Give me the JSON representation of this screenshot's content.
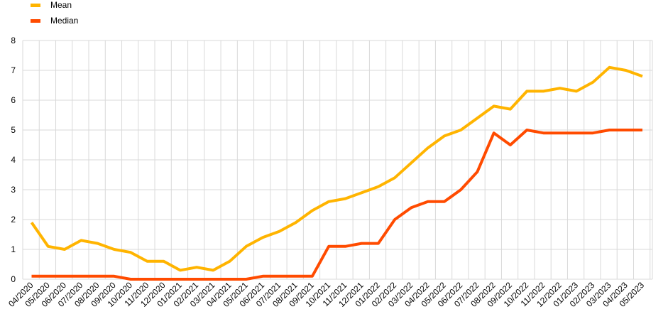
{
  "chart_data": {
    "type": "line",
    "title": "",
    "xlabel": "",
    "ylabel": "",
    "ylim": [
      0,
      8
    ],
    "yticks": [
      0,
      1,
      2,
      3,
      4,
      5,
      6,
      7,
      8
    ],
    "grid": true,
    "legend_position": "top-left",
    "categories": [
      "04/2020",
      "05/2020",
      "06/2020",
      "07/2020",
      "08/2020",
      "09/2020",
      "10/2020",
      "11/2020",
      "12/2020",
      "01/2021",
      "02/2021",
      "03/2021",
      "04/2021",
      "05/2021",
      "06/2021",
      "07/2021",
      "08/2021",
      "09/2021",
      "10/2021",
      "11/2021",
      "12/2021",
      "01/2022",
      "02/2022",
      "03/2022",
      "04/2022",
      "05/2022",
      "06/2022",
      "07/2022",
      "08/2022",
      "09/2022",
      "10/2022",
      "11/2022",
      "12/2022",
      "01/2023",
      "02/2023",
      "03/2023",
      "04/2023",
      "05/2023"
    ],
    "series": [
      {
        "name": "Mean",
        "color": "#FFB400",
        "values": [
          1.9,
          1.1,
          1.0,
          1.3,
          1.2,
          1.0,
          0.9,
          0.6,
          0.6,
          0.3,
          0.4,
          0.3,
          0.6,
          1.1,
          1.4,
          1.6,
          1.9,
          2.3,
          2.6,
          2.7,
          2.9,
          3.1,
          3.4,
          3.9,
          4.4,
          4.8,
          5.0,
          5.4,
          5.8,
          5.7,
          6.3,
          6.3,
          6.4,
          6.3,
          6.6,
          7.1,
          7.0,
          6.8
        ]
      },
      {
        "name": "Median",
        "color": "#FF4B00",
        "values": [
          0.1,
          0.1,
          0.1,
          0.1,
          0.1,
          0.1,
          0.0,
          0.0,
          0.0,
          0.0,
          0.0,
          0.0,
          0.0,
          0.0,
          0.1,
          0.1,
          0.1,
          0.1,
          1.1,
          1.1,
          1.2,
          1.2,
          2.0,
          2.4,
          2.6,
          2.6,
          3.0,
          3.6,
          4.9,
          4.5,
          5.0,
          4.9,
          4.9,
          4.9,
          4.9,
          5.0,
          5.0,
          5.0
        ]
      }
    ]
  }
}
